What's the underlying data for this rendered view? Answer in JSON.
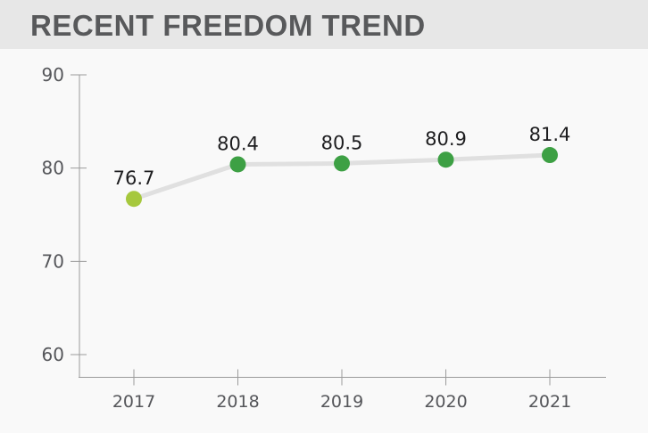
{
  "header": {
    "title": "RECENT FREEDOM TREND"
  },
  "chart_data": {
    "type": "line",
    "title": "RECENT FREEDOM TREND",
    "categories": [
      "2017",
      "2018",
      "2019",
      "2020",
      "2021"
    ],
    "values": [
      76.7,
      80.4,
      80.5,
      80.9,
      81.4
    ],
    "data_labels": [
      "76.7",
      "80.4",
      "80.5",
      "80.9",
      "81.4"
    ],
    "xlabel": "",
    "ylabel": "",
    "ylim": [
      60,
      90
    ],
    "yticks": [
      90,
      80,
      70,
      60
    ],
    "grid": false,
    "legend": false,
    "point_colors": [
      "#a6c83d",
      "#3da044",
      "#3da044",
      "#3da044",
      "#3da044"
    ],
    "colors": {
      "line": "#e0e0e0",
      "axis": "#9b9b9b",
      "axis_label": "#55565a",
      "data_label": "#1d1d1f",
      "header_bg": "#e7e7e7",
      "page_bg": "#f9f9f9",
      "title_text": "#58595b",
      "first_point": "#a6c83d",
      "point": "#3da044"
    }
  }
}
